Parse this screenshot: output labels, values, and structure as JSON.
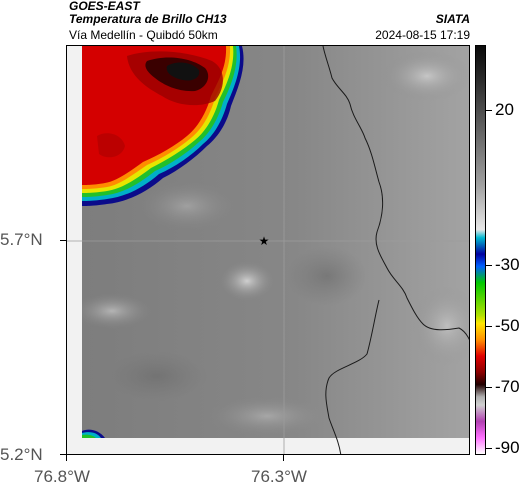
{
  "header": {
    "satellite": "GOES-EAST",
    "product": "Temperatura de Brillo CH13",
    "region": "Vía Medellín - Quibdó 50km",
    "brand": "SIATA",
    "datetime": "2024-08-15 17:19"
  },
  "axes": {
    "lat_labels": [
      "5.7°N",
      "5.2°N"
    ],
    "lon_labels": [
      "76.8°W",
      "76.3°W"
    ]
  },
  "colorbar": {
    "labels": [
      "20",
      "-30",
      "-50",
      "-70",
      "-90"
    ]
  },
  "marker": {
    "name": "star-marker"
  },
  "colors": {
    "storm_core": "#d40000",
    "boundary": "#1a1a1a"
  }
}
